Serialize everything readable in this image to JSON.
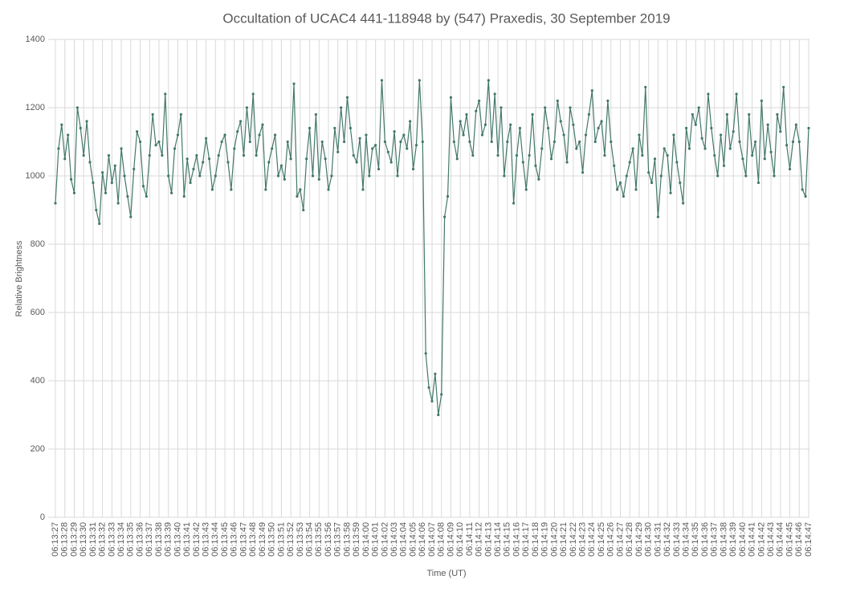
{
  "chart_data": {
    "type": "line",
    "title": "Occultation of UCAC4 441-118948 by (547) Praxedis, 30 September 2019",
    "x_label": "Time (UT)",
    "y_label": "Relative Brightness",
    "categories": [
      "06:13:27",
      null,
      null,
      "06:13:28",
      null,
      null,
      "06:13:29",
      null,
      null,
      "06:13:30",
      null,
      null,
      "06:13:31",
      null,
      null,
      "06:13:32",
      null,
      null,
      "06:13:33",
      null,
      null,
      "06:13:34",
      null,
      null,
      "06:13:35",
      null,
      null,
      "06:13:36",
      null,
      null,
      "06:13:37",
      null,
      null,
      "06:13:38",
      null,
      null,
      "06:13:39",
      null,
      null,
      "06:13:40",
      null,
      null,
      "06:13:41",
      null,
      null,
      "06:13:42",
      null,
      null,
      "06:13:43",
      null,
      null,
      "06:13:44",
      null,
      null,
      "06:13:45",
      null,
      null,
      "06:13:46",
      null,
      null,
      "06:13:47",
      null,
      null,
      "06:13:48",
      null,
      null,
      "06:13:49",
      null,
      null,
      "06:13:50",
      null,
      null,
      "06:13:51",
      null,
      null,
      "06:13:52",
      null,
      null,
      "06:13:53",
      null,
      null,
      "06:13:54",
      null,
      null,
      "06:13:55",
      null,
      null,
      "06:13:56",
      null,
      null,
      "06:13:57",
      null,
      null,
      "06:13:58",
      null,
      null,
      "06:13:59",
      null,
      null,
      "06:14:00",
      null,
      null,
      "06:14:01",
      null,
      null,
      "06:14:02",
      null,
      null,
      "06:14:03",
      null,
      null,
      "06:14:04",
      null,
      null,
      "06:14:05",
      null,
      null,
      "06:14:06",
      null,
      null,
      "06:14:07",
      null,
      null,
      "06:14:08",
      null,
      null,
      "06:14:09",
      null,
      null,
      "06:14:10",
      null,
      null,
      "06:14:11",
      null,
      null,
      "06:14:12",
      null,
      null,
      "06:14:13",
      null,
      null,
      "06:14:14",
      null,
      null,
      "06:14:15",
      null,
      null,
      "06:14:16",
      null,
      null,
      "06:14:17",
      null,
      null,
      "06:14:18",
      null,
      null,
      "06:14:19",
      null,
      null,
      "06:14:20",
      null,
      null,
      "06:14:21",
      null,
      null,
      "06:14:22",
      null,
      null,
      "06:14:23",
      null,
      null,
      "06:14:24",
      null,
      null,
      "06:14:25",
      null,
      null,
      "06:14:26",
      null,
      null,
      "06:14:27",
      null,
      null,
      "06:14:28",
      null,
      null,
      "06:14:29",
      null,
      null,
      "06:14:30",
      null,
      null,
      "06:14:31",
      null,
      null,
      "06:14:32",
      null,
      null,
      "06:14:33",
      null,
      null,
      "06:14:34",
      null,
      null,
      "06:14:35",
      null,
      null,
      "06:14:36",
      null,
      null,
      "06:14:37",
      null,
      null,
      "06:14:38",
      null,
      null,
      "06:14:39",
      null,
      null,
      "06:14:40",
      null,
      null,
      "06:14:41",
      null,
      null,
      "06:14:42",
      null,
      null,
      "06:14:43",
      null,
      null,
      "06:14:44",
      null,
      null,
      "06:14:45",
      null,
      null,
      "06:14:46",
      null,
      null,
      "06:14:47"
    ],
    "values": [
      920,
      1080,
      1150,
      1050,
      1120,
      990,
      950,
      1200,
      1140,
      1060,
      1160,
      1040,
      980,
      900,
      860,
      1010,
      950,
      1060,
      980,
      1030,
      920,
      1080,
      1000,
      940,
      880,
      1020,
      1130,
      1100,
      970,
      940,
      1060,
      1180,
      1090,
      1100,
      1060,
      1240,
      1000,
      950,
      1080,
      1120,
      1180,
      940,
      1050,
      980,
      1020,
      1060,
      1000,
      1040,
      1110,
      1050,
      960,
      1000,
      1060,
      1100,
      1120,
      1040,
      960,
      1080,
      1130,
      1160,
      1060,
      1200,
      1100,
      1240,
      1060,
      1120,
      1150,
      960,
      1040,
      1080,
      1120,
      1000,
      1030,
      990,
      1100,
      1050,
      1270,
      940,
      960,
      900,
      1050,
      1140,
      1000,
      1180,
      990,
      1100,
      1050,
      960,
      1000,
      1140,
      1070,
      1200,
      1100,
      1230,
      1140,
      1060,
      1040,
      1110,
      960,
      1120,
      1000,
      1080,
      1090,
      1020,
      1280,
      1100,
      1070,
      1040,
      1130,
      1000,
      1100,
      1120,
      1080,
      1160,
      1020,
      1090,
      1280,
      1100,
      480,
      380,
      340,
      420,
      300,
      360,
      880,
      940,
      1230,
      1100,
      1050,
      1160,
      1120,
      1180,
      1100,
      1060,
      1190,
      1220,
      1120,
      1150,
      1280,
      1100,
      1240,
      1060,
      1200,
      1000,
      1100,
      1150,
      920,
      1060,
      1140,
      1040,
      960,
      1060,
      1180,
      1030,
      990,
      1080,
      1200,
      1140,
      1050,
      1100,
      1220,
      1160,
      1120,
      1040,
      1200,
      1150,
      1080,
      1100,
      1010,
      1120,
      1180,
      1250,
      1100,
      1140,
      1160,
      1060,
      1220,
      1100,
      1030,
      960,
      980,
      940,
      1000,
      1040,
      1080,
      960,
      1120,
      1060,
      1260,
      1010,
      980,
      1050,
      880,
      1000,
      1080,
      1060,
      950,
      1120,
      1040,
      980,
      920,
      1140,
      1080,
      1180,
      1150,
      1200,
      1110,
      1080,
      1240,
      1140,
      1060,
      1000,
      1120,
      1030,
      1180,
      1080,
      1130,
      1240,
      1100,
      1050,
      1000,
      1180,
      1060,
      1100,
      980,
      1220,
      1050,
      1150,
      1070,
      1000,
      1180,
      1130,
      1260,
      1090,
      1020,
      1100,
      1150,
      1100,
      960,
      940,
      1140
    ],
    "color": "#43786a",
    "ylim": [
      0,
      1400
    ],
    "yticks": [
      0,
      200,
      400,
      600,
      800,
      1000,
      1200,
      1400
    ],
    "grid": true
  }
}
